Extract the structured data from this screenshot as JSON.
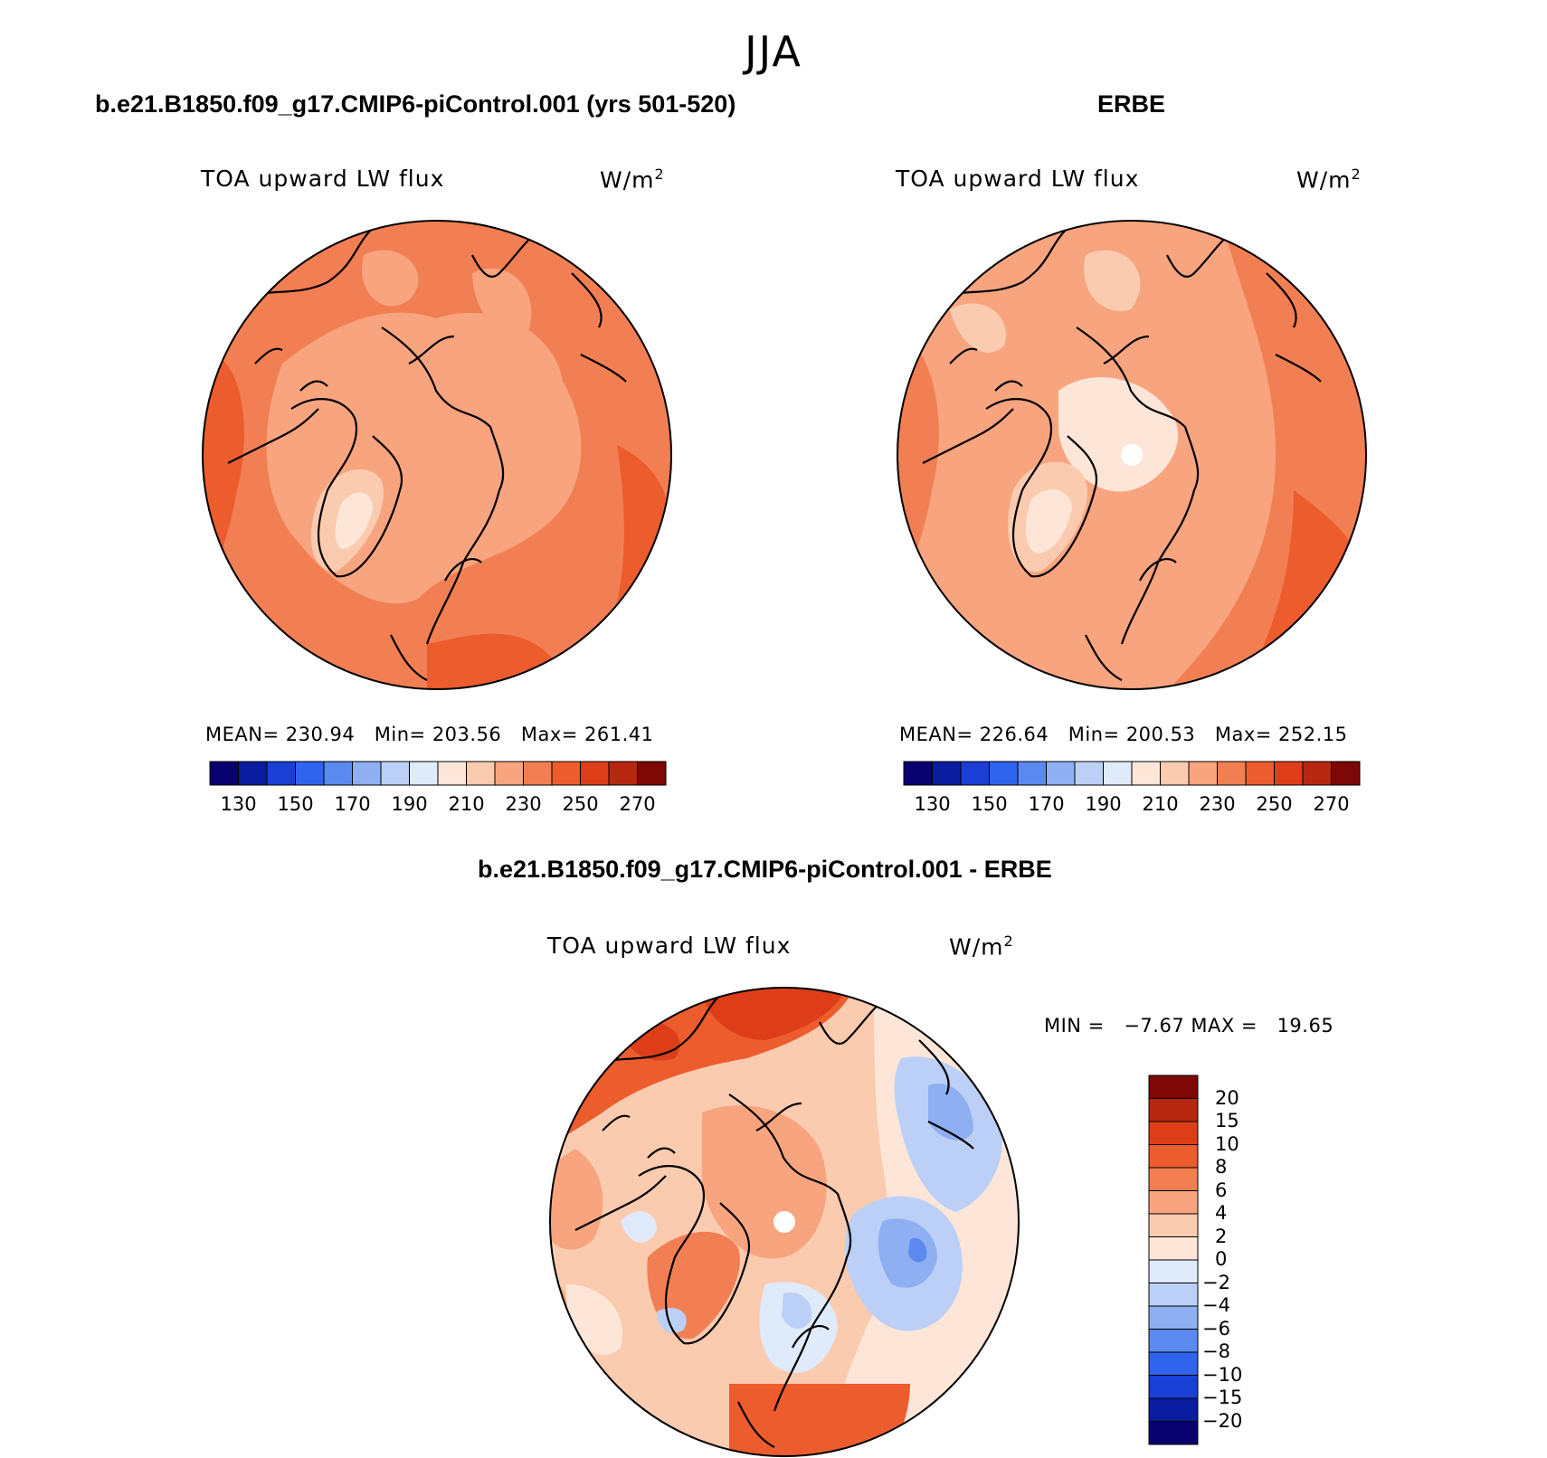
{
  "figure": {
    "season": "JJA",
    "palette_abs": [
      "#08006e",
      "#0a1ca0",
      "#1a3fd6",
      "#2f64ee",
      "#5b89ef",
      "#8eaff2",
      "#bccff6",
      "#dfeafb",
      "#fde6d8",
      "#fbcbb0",
      "#f7a47f",
      "#f27f53",
      "#ec5c2d",
      "#dd3e19",
      "#b82810",
      "#7d0805"
    ],
    "palette_diff": [
      "#08006e",
      "#0a1ca0",
      "#1a3fd6",
      "#2f64ee",
      "#5b89ef",
      "#8eaff2",
      "#bccff6",
      "#dfeafb",
      "#fde6d8",
      "#fbcbb0",
      "#f7a47f",
      "#f27f53",
      "#ec5c2d",
      "#dd3e19",
      "#b82810",
      "#7d0805"
    ]
  },
  "panels": [
    {
      "case_title": "b.e21.B1850.f09_g17.CMIP6-piControl.001 (yrs 501-520)",
      "variable": "TOA upward LW flux",
      "units": "W/m",
      "units_exp": "2",
      "mean_label": "MEAN=",
      "mean": "230.94",
      "min_label": "Min=",
      "min": "203.56",
      "max_label": "Max=",
      "max": "261.41",
      "ticks": [
        "130",
        "150",
        "170",
        "190",
        "210",
        "230",
        "250",
        "270"
      ]
    },
    {
      "case_title": "ERBE",
      "variable": "TOA upward LW flux",
      "units": "W/m",
      "units_exp": "2",
      "mean_label": "MEAN=",
      "mean": "226.64",
      "min_label": "Min=",
      "min": "200.53",
      "max_label": "Max=",
      "max": "252.15",
      "ticks": [
        "130",
        "150",
        "170",
        "190",
        "210",
        "230",
        "250",
        "270"
      ]
    }
  ],
  "diff_panel": {
    "title": "b.e21.B1850.f09_g17.CMIP6-piControl.001 - ERBE",
    "variable": "TOA upward LW flux",
    "units": "W/m",
    "units_exp": "2",
    "min_label": "MIN =",
    "min": "−7.67",
    "max_label": "MAX =",
    "max": "19.65",
    "ticks": [
      "20",
      "15",
      "10",
      "8",
      "6",
      "4",
      "2",
      "0",
      "−2",
      "−4",
      "−6",
      "−8",
      "−10",
      "−15",
      "−20"
    ]
  }
}
